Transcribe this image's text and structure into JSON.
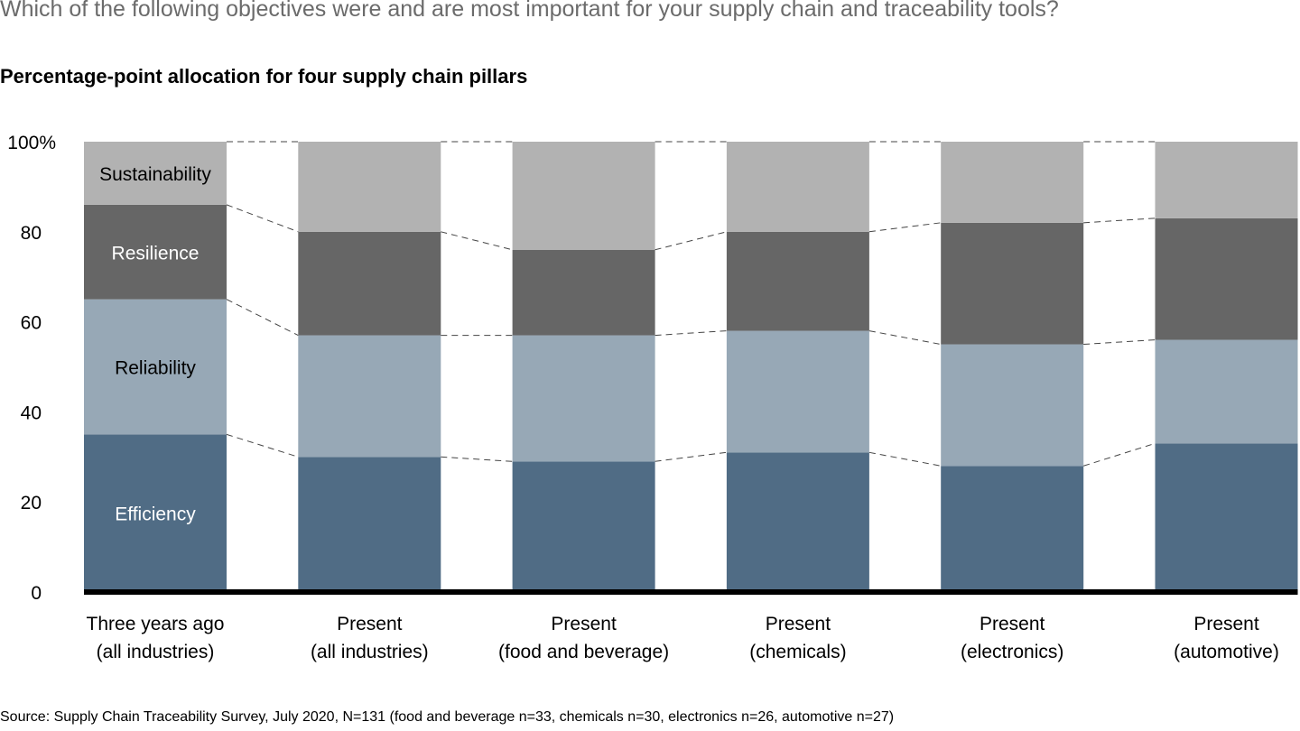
{
  "question": "Which of the following objectives were and are most important for your supply chain and traceability tools?",
  "source": "Source: Supply Chain Traceability Survey, July 2020, N=131 (food and beverage n=33, chemicals n=30, electronics n=26, automotive n=27)",
  "chart_data": {
    "type": "bar",
    "stacked": true,
    "title": "Percentage-point allocation for four supply chain pillars",
    "xlabel": "",
    "ylabel": "",
    "ylim": [
      0,
      100
    ],
    "yticks": [
      "0",
      "20",
      "40",
      "60",
      "80",
      "100%"
    ],
    "grid": false,
    "legend": "inline labels on first bar",
    "categories": [
      [
        "Three years ago",
        "(all industries)"
      ],
      [
        "Present",
        "(all industries)"
      ],
      [
        "Present",
        "(food and beverage)"
      ],
      [
        "Present",
        "(chemicals)"
      ],
      [
        "Present",
        "(electronics)"
      ],
      [
        "Present",
        "(automotive)"
      ]
    ],
    "series": [
      {
        "name": "Efficiency",
        "color": "#506c85",
        "label_color": "#ffffff",
        "values": [
          35,
          30,
          29,
          31,
          28,
          33
        ]
      },
      {
        "name": "Reliability",
        "color": "#97a8b6",
        "label_color": "#000000",
        "values": [
          30,
          27,
          28,
          27,
          27,
          23
        ]
      },
      {
        "name": "Resilience",
        "color": "#666666",
        "label_color": "#ffffff",
        "values": [
          21,
          23,
          19,
          22,
          27,
          27
        ]
      },
      {
        "name": "Sustainability",
        "color": "#b2b2b2",
        "label_color": "#000000",
        "values": [
          14,
          20,
          24,
          20,
          18,
          17
        ]
      }
    ]
  }
}
